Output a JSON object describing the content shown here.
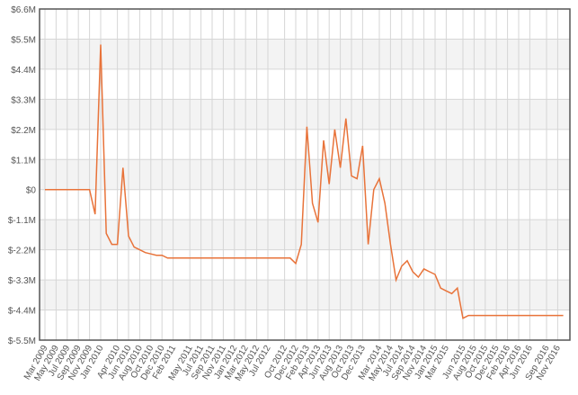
{
  "chart_data": {
    "type": "line",
    "categories": [
      "Mar 2009",
      null,
      "May 2009",
      null,
      "Jul 2009",
      null,
      "Sep 2009",
      null,
      "Nov 2009",
      null,
      "Jan 2010",
      null,
      null,
      "Apr 2010",
      null,
      "Jun 2010",
      null,
      "Aug 2010",
      null,
      "Oct 2010",
      null,
      "Dec 2010",
      null,
      "Feb 2011",
      null,
      null,
      "May 2011",
      null,
      "Jul 2011",
      null,
      "Sep 2011",
      null,
      "Nov 2011",
      null,
      "Jan 2012",
      null,
      "Mar 2012",
      null,
      "May 2012",
      null,
      "Jul 2012",
      null,
      null,
      "Oct 2012",
      null,
      "Dec 2012",
      null,
      "Feb 2013",
      null,
      "Apr 2013",
      null,
      "Jun 2013",
      null,
      "Aug 2013",
      null,
      "Oct 2013",
      null,
      "Dec 2013",
      null,
      null,
      "Mar 2014",
      null,
      "May 2014",
      null,
      "Jul 2014",
      null,
      "Sep 2014",
      null,
      "Nov 2014",
      null,
      "Jan 2015",
      null,
      "Mar 2015",
      null,
      null,
      "Jun 2015",
      null,
      "Aug 2015",
      null,
      "Oct 2015",
      null,
      "Dec 2015",
      null,
      "Feb 2016",
      null,
      "Apr 2016",
      null,
      "Jun 2016",
      null,
      null,
      "Sep 2016",
      null,
      "Nov 2016",
      null
    ],
    "series": [
      {
        "color": "#e8733a",
        "values": [
          0,
          0,
          0,
          0,
          0,
          0,
          0,
          0,
          0,
          -900000,
          5300000,
          -1600000,
          -2000000,
          -2000000,
          800000,
          -1700000,
          -2100000,
          -2200000,
          -2300000,
          -2350000,
          -2400000,
          -2400000,
          -2500000,
          -2500000,
          -2500000,
          -2500000,
          -2500000,
          -2500000,
          -2500000,
          -2500000,
          -2500000,
          -2500000,
          -2500000,
          -2500000,
          -2500000,
          -2500000,
          -2500000,
          -2500000,
          -2500000,
          -2500000,
          -2500000,
          -2500000,
          -2500000,
          -2500000,
          -2500000,
          -2700000,
          -2000000,
          2300000,
          -500000,
          -1200000,
          1800000,
          200000,
          2200000,
          800000,
          2600000,
          500000,
          400000,
          1600000,
          -2000000,
          0,
          400000,
          -500000,
          -2000000,
          -3300000,
          -2800000,
          -2600000,
          -3000000,
          -3200000,
          -2900000,
          -3000000,
          -3100000,
          -3600000,
          -3700000,
          -3800000,
          -3600000,
          -4700000,
          -4600000,
          -4600000,
          -4600000,
          -4600000,
          -4600000,
          -4600000,
          -4600000,
          -4600000,
          -4600000,
          -4600000,
          -4600000,
          -4600000,
          -4600000,
          -4600000,
          -4600000,
          -4600000,
          -4600000,
          -4600000
        ]
      }
    ],
    "ylim": [
      -5500000,
      6600000
    ],
    "yticks": [
      {
        "value": -5500000,
        "label": "$-5.5M"
      },
      {
        "value": -4400000,
        "label": "$-4.4M"
      },
      {
        "value": -3300000,
        "label": "$-3.3M"
      },
      {
        "value": -2200000,
        "label": "$-2.2M"
      },
      {
        "value": -1100000,
        "label": "$-1.1M"
      },
      {
        "value": 0,
        "label": "$0"
      },
      {
        "value": 1100000,
        "label": "$1.1M"
      },
      {
        "value": 2200000,
        "label": "$2.2M"
      },
      {
        "value": 3300000,
        "label": "$3.3M"
      },
      {
        "value": 4400000,
        "label": "$4.4M"
      },
      {
        "value": 5500000,
        "label": "$5.5M"
      },
      {
        "value": 6600000,
        "label": "$6.6M"
      }
    ],
    "grid": true
  }
}
